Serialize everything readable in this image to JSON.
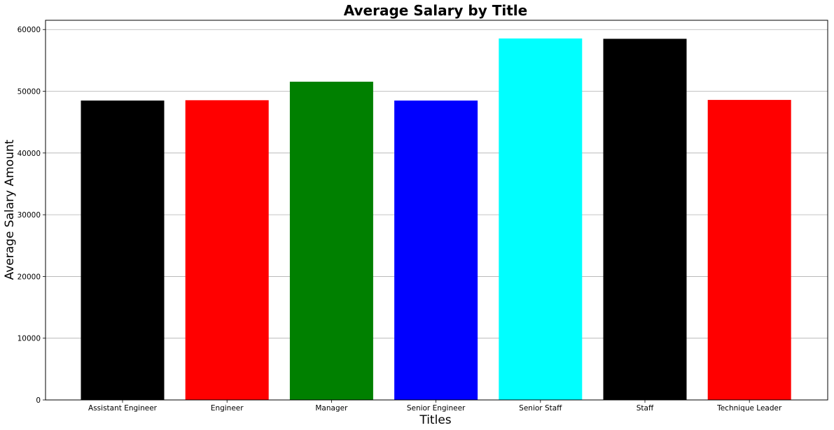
{
  "chart_data": {
    "type": "bar",
    "title": "Average Salary by Title",
    "xlabel": "Titles",
    "ylabel": "Average Salary Amount",
    "categories": [
      "Assistant Engineer",
      "Engineer",
      "Manager",
      "Senior Engineer",
      "Senior Staff",
      "Staff",
      "Technique Leader"
    ],
    "values": [
      48500,
      48550,
      51550,
      48500,
      58550,
      58500,
      48600
    ],
    "colors": [
      "#000000",
      "#ff0000",
      "#008000",
      "#0000ff",
      "#00ffff",
      "#000000",
      "#ff0000"
    ],
    "ylim": [
      0,
      61500
    ],
    "yticks": [
      0,
      10000,
      20000,
      30000,
      40000,
      50000,
      60000
    ],
    "grid": "horizontal",
    "legend": "none"
  }
}
